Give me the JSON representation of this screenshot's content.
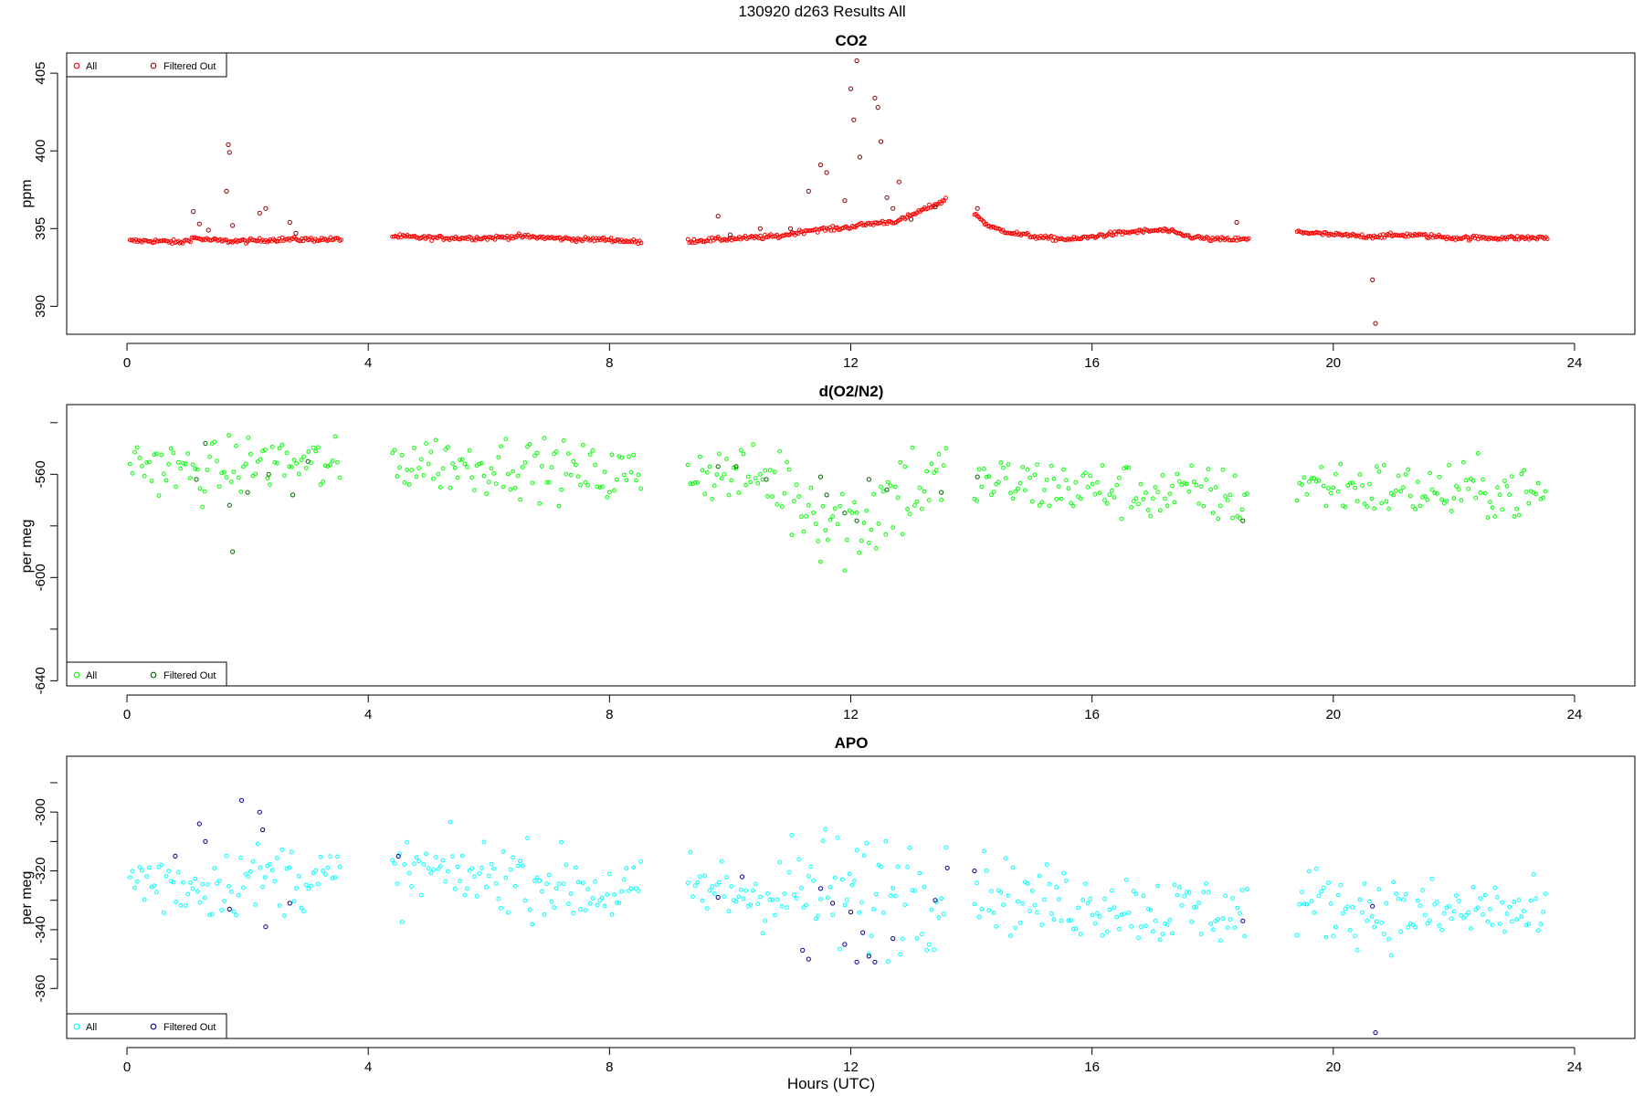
{
  "figure": {
    "suptitle": "130920   d263   Results All",
    "xlabel": "Hours (UTC)"
  },
  "chart_data": [
    {
      "type": "scatter",
      "title": "CO2",
      "xlabel": "",
      "ylabel": "ppm",
      "xlim": [
        -1.0,
        25.0
      ],
      "ylim": [
        388.2,
        406.3
      ],
      "xticks": [
        0,
        4,
        8,
        12,
        16,
        20,
        24
      ],
      "yticks": [
        390,
        395,
        400,
        405
      ],
      "grid": false,
      "legend_placement": "top-left",
      "legend": [
        {
          "name": "All",
          "color": "#ff0000"
        },
        {
          "name": "Filtered Out",
          "color": "#8b0000"
        }
      ],
      "series": [
        {
          "name": "All",
          "color": "#ff0000",
          "segments": [
            {
              "x": [
                0.05,
                0.5,
                0.9,
                1.1,
                1.3,
                1.6,
                2.0,
                2.5,
                3.0,
                3.55
              ],
              "y": [
                394.2,
                394.2,
                394.1,
                394.4,
                394.3,
                394.2,
                394.2,
                394.3,
                394.3,
                394.3
              ]
            },
            {
              "x": [
                4.4,
                5.0,
                6.0,
                6.5,
                7.0,
                7.5,
                8.0,
                8.55
              ],
              "y": [
                394.5,
                394.4,
                394.4,
                394.5,
                394.4,
                394.3,
                394.3,
                394.1
              ]
            },
            {
              "x": [
                9.3,
                9.8,
                10.3,
                10.8,
                11.3,
                11.8,
                12.3,
                12.8,
                13.2,
                13.6
              ],
              "y": [
                394.2,
                394.3,
                394.4,
                394.5,
                394.9,
                395.0,
                395.3,
                395.5,
                396.2,
                396.9
              ]
            },
            {
              "x": [
                14.05,
                14.3,
                14.7,
                15.2,
                15.7,
                16.2,
                16.7,
                17.2,
                17.6,
                18.0,
                18.6
              ],
              "y": [
                396.0,
                395.1,
                394.7,
                394.4,
                394.3,
                394.6,
                394.8,
                394.9,
                394.5,
                394.3,
                394.3
              ]
            },
            {
              "x": [
                19.4,
                20.0,
                20.6,
                21.3,
                22.0,
                22.7,
                23.55
              ],
              "y": [
                394.8,
                394.6,
                394.5,
                394.6,
                394.4,
                394.4,
                394.4
              ]
            }
          ]
        },
        {
          "name": "Filtered Out",
          "color": "#8b0000",
          "points": [
            [
              1.1,
              396.1
            ],
            [
              1.2,
              395.3
            ],
            [
              1.35,
              394.9
            ],
            [
              1.65,
              397.4
            ],
            [
              1.68,
              400.4
            ],
            [
              1.7,
              399.9
            ],
            [
              1.75,
              395.2
            ],
            [
              2.2,
              396.0
            ],
            [
              2.3,
              396.3
            ],
            [
              2.7,
              395.4
            ],
            [
              2.8,
              394.7
            ],
            [
              9.8,
              395.8
            ],
            [
              10.0,
              394.6
            ],
            [
              10.5,
              395.0
            ],
            [
              11.0,
              395.0
            ],
            [
              11.3,
              397.4
            ],
            [
              11.5,
              399.1
            ],
            [
              11.6,
              398.6
            ],
            [
              11.9,
              396.8
            ],
            [
              12.0,
              404.0
            ],
            [
              12.05,
              402.0
            ],
            [
              12.1,
              405.8
            ],
            [
              12.15,
              399.6
            ],
            [
              12.4,
              403.4
            ],
            [
              12.45,
              402.8
            ],
            [
              12.5,
              400.6
            ],
            [
              12.6,
              397.0
            ],
            [
              12.7,
              396.3
            ],
            [
              12.8,
              398.0
            ],
            [
              13.0,
              395.6
            ],
            [
              13.4,
              396.4
            ],
            [
              14.1,
              396.3
            ],
            [
              18.4,
              395.4
            ],
            [
              20.65,
              391.7
            ],
            [
              20.7,
              388.9
            ]
          ]
        }
      ]
    },
    {
      "type": "scatter",
      "title": "d(O2/N2)",
      "xlabel": "",
      "ylabel": "per meg",
      "xlim": [
        -1.0,
        25.0
      ],
      "ylim": [
        -642,
        -533
      ],
      "xticks": [
        0,
        4,
        8,
        12,
        16,
        20,
        24
      ],
      "yticks": [
        -560,
        -600,
        -640
      ],
      "grid": false,
      "legend_placement": "bottom-left",
      "legend": [
        {
          "name": "All",
          "color": "#00ff00"
        },
        {
          "name": "Filtered Out",
          "color": "#006400"
        }
      ],
      "series": [
        {
          "name": "All",
          "color": "#00ff00",
          "segments": [
            {
              "x": [
                0.05,
                0.6,
                1.2,
                1.8,
                2.4,
                3.0,
                3.55
              ],
              "y": [
                -555,
                -557,
                -560,
                -557,
                -555,
                -556,
                -558
              ]
            },
            {
              "x": [
                4.4,
                5.0,
                5.7,
                6.3,
                7.0,
                7.7,
                8.55
              ],
              "y": [
                -556,
                -555,
                -557,
                -556,
                -558,
                -560,
                -560
              ]
            },
            {
              "x": [
                9.3,
                9.9,
                10.5,
                11.0,
                11.5,
                12.0,
                12.5,
                13.0,
                13.6
              ],
              "y": [
                -558,
                -560,
                -561,
                -566,
                -574,
                -580,
                -572,
                -564,
                -565
              ]
            },
            {
              "x": [
                14.05,
                14.8,
                15.6,
                16.4,
                17.2,
                17.9,
                18.6
              ],
              "y": [
                -563,
                -564,
                -565,
                -566,
                -568,
                -567,
                -571
              ]
            },
            {
              "x": [
                19.4,
                20.2,
                21.0,
                21.8,
                22.6,
                23.55
              ],
              "y": [
                -563,
                -565,
                -566,
                -567,
                -566,
                -569
              ]
            }
          ]
        },
        {
          "name": "Filtered Out",
          "color": "#006400",
          "points": [
            [
              1.15,
              -562
            ],
            [
              1.3,
              -548
            ],
            [
              1.7,
              -572
            ],
            [
              1.75,
              -590
            ],
            [
              2.0,
              -567
            ],
            [
              2.35,
              -560
            ],
            [
              2.75,
              -568
            ],
            [
              3.0,
              -555
            ],
            [
              9.8,
              -557
            ],
            [
              10.1,
              -557
            ],
            [
              10.6,
              -562
            ],
            [
              11.5,
              -561
            ],
            [
              11.6,
              -568
            ],
            [
              11.9,
              -575
            ],
            [
              12.1,
              -578
            ],
            [
              12.3,
              -562
            ],
            [
              12.6,
              -566
            ],
            [
              13.5,
              -567
            ],
            [
              14.1,
              -561
            ],
            [
              18.5,
              -578
            ]
          ]
        }
      ]
    },
    {
      "type": "scatter",
      "title": "APO",
      "xlabel": "Hours (UTC)",
      "ylabel": "per meg",
      "xlim": [
        -1.0,
        25.0
      ],
      "ylim": [
        -377,
        -281
      ],
      "xticks": [
        0,
        4,
        8,
        12,
        16,
        20,
        24
      ],
      "yticks": [
        -300,
        -320,
        -340,
        -360
      ],
      "grid": false,
      "legend_placement": "bottom-left",
      "legend": [
        {
          "name": "All",
          "color": "#00ffff"
        },
        {
          "name": "Filtered Out",
          "color": "#00008b"
        }
      ],
      "series": [
        {
          "name": "All",
          "color": "#00ffff",
          "segments": [
            {
              "x": [
                0.05,
                0.6,
                1.2,
                1.8,
                2.4,
                3.0,
                3.55
              ],
              "y": [
                -322,
                -324,
                -325,
                -323,
                -322,
                -322,
                -323
              ]
            },
            {
              "x": [
                4.4,
                5.0,
                5.7,
                6.3,
                7.0,
                7.7,
                8.55
              ],
              "y": [
                -322,
                -320,
                -322,
                -321,
                -324,
                -327,
                -327
              ]
            },
            {
              "x": [
                9.3,
                9.9,
                10.5,
                11.0,
                11.5,
                12.0,
                12.5,
                13.0,
                13.6
              ],
              "y": [
                -326,
                -327,
                -328,
                -327,
                -327,
                -329,
                -328,
                -325,
                -324
              ]
            },
            {
              "x": [
                14.05,
                14.8,
                15.6,
                16.4,
                17.2,
                17.9,
                18.6
              ],
              "y": [
                -324,
                -330,
                -331,
                -331,
                -334,
                -333,
                -335
              ]
            },
            {
              "x": [
                19.4,
                20.2,
                21.0,
                21.8,
                22.6,
                23.55
              ],
              "y": [
                -330,
                -332,
                -334,
                -335,
                -333,
                -337
              ]
            }
          ]
        },
        {
          "name": "Filtered Out",
          "color": "#00008b",
          "points": [
            [
              0.8,
              -315
            ],
            [
              1.2,
              -304
            ],
            [
              1.3,
              -310
            ],
            [
              1.7,
              -333
            ],
            [
              1.9,
              -296
            ],
            [
              2.2,
              -300
            ],
            [
              2.25,
              -306
            ],
            [
              2.3,
              -339
            ],
            [
              2.7,
              -331
            ],
            [
              4.5,
              -315
            ],
            [
              9.8,
              -329
            ],
            [
              10.2,
              -322
            ],
            [
              11.2,
              -347
            ],
            [
              11.3,
              -350
            ],
            [
              11.5,
              -326
            ],
            [
              11.7,
              -331
            ],
            [
              11.9,
              -345
            ],
            [
              12.0,
              -334
            ],
            [
              12.1,
              -351
            ],
            [
              12.2,
              -341
            ],
            [
              12.3,
              -349
            ],
            [
              12.4,
              -351
            ],
            [
              12.7,
              -343
            ],
            [
              13.4,
              -330
            ],
            [
              13.6,
              -319
            ],
            [
              14.05,
              -320
            ],
            [
              18.5,
              -337
            ],
            [
              20.65,
              -332
            ],
            [
              20.7,
              -375
            ]
          ]
        }
      ]
    }
  ]
}
